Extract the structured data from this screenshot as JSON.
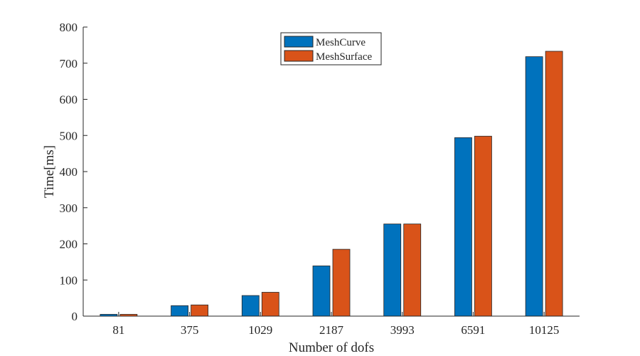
{
  "chart_data": {
    "type": "bar",
    "xlabel": "Number of dofs",
    "ylabel": "Time[ms]",
    "categories": [
      "81",
      "375",
      "1029",
      "2187",
      "3993",
      "6591",
      "10125"
    ],
    "series": [
      {
        "name": "MeshCurve",
        "color": "#0072BD",
        "values": [
          5,
          29,
          57,
          139,
          255,
          494,
          718
        ]
      },
      {
        "name": "MeshSurface",
        "color": "#D95319",
        "values": [
          5,
          31,
          66,
          185,
          255,
          498,
          733
        ]
      }
    ],
    "ylim": [
      0,
      800
    ],
    "yticks": [
      0,
      100,
      200,
      300,
      400,
      500,
      600,
      700,
      800
    ],
    "grid": false,
    "legend_position": "top-center"
  }
}
